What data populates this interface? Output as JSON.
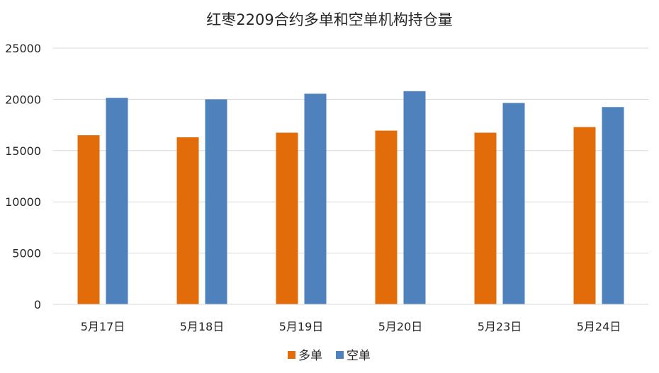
{
  "chart_data": {
    "type": "bar",
    "title": "红枣2209合约多单和空单机构持仓量",
    "categories": [
      "5月17日",
      "5月18日",
      "5月19日",
      "5月20日",
      "5月23日",
      "5月24日"
    ],
    "series": [
      {
        "name": "多单",
        "color": "#e36c0a",
        "values": [
          16500,
          16300,
          16750,
          16950,
          16750,
          17300
        ]
      },
      {
        "name": "空单",
        "color": "#4f81bd",
        "values": [
          20150,
          20000,
          20550,
          20800,
          19650,
          19250
        ]
      }
    ],
    "ylim": [
      0,
      25000
    ],
    "yticks": [
      0,
      5000,
      10000,
      15000,
      20000,
      25000
    ],
    "xlabel": "",
    "ylabel": "",
    "grid": true,
    "legend_position": "bottom"
  }
}
